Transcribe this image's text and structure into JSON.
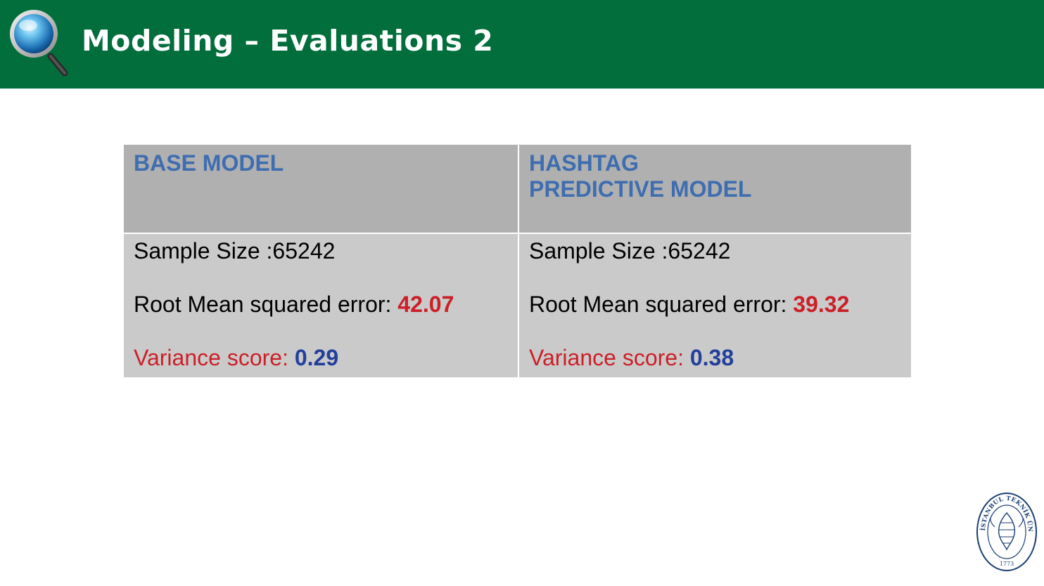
{
  "slide": {
    "title": "Modeling – Evaluations 2"
  },
  "table": {
    "columns": [
      {
        "header": "BASE MODEL",
        "sample_size_label": "Sample Size :65242",
        "rmse_label": "Root Mean squared error: ",
        "rmse_value": "42.07",
        "variance_label": "Variance score: ",
        "variance_value": "0.29"
      },
      {
        "header": "HASHTAG\nPREDICTIVE  MODEL",
        "sample_size_label": "Sample Size :65242",
        "rmse_label": "Root Mean squared error: ",
        "rmse_value": "39.32",
        "variance_label": "Variance score: ",
        "variance_value": "0.38"
      }
    ]
  },
  "logo": {
    "icon": "magnifier-icon",
    "seal_icon": "university-seal-icon",
    "seal_text": "İSTANBUL TEKNİK ÜNİVERSİTESİ",
    "seal_year": "1773"
  },
  "colors": {
    "header_green": "#016e3c",
    "header_text": "#3e6db0",
    "rmse_red": "#cc1f27",
    "variance_blue": "#233f9c",
    "table_head_bg": "#b0b0b0",
    "table_body_bg": "#cacaca"
  }
}
